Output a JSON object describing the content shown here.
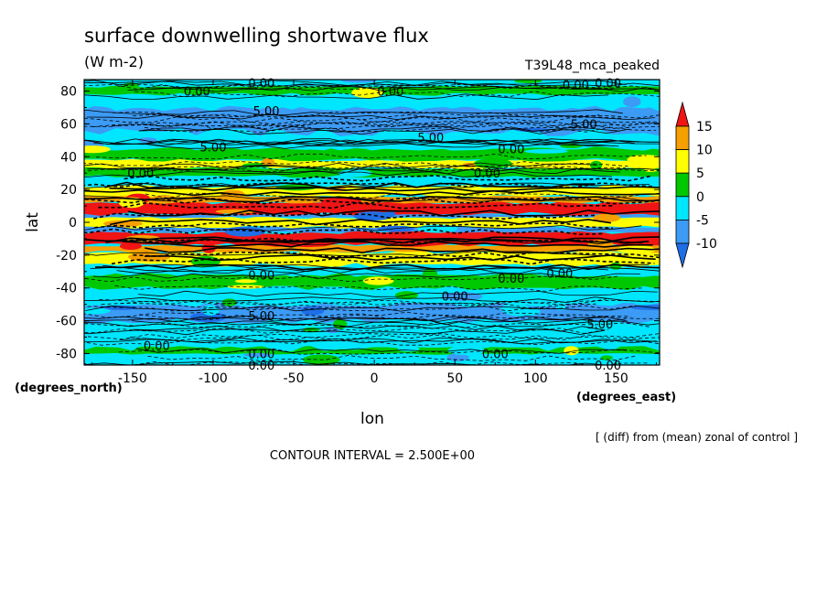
{
  "chart_data": {
    "type": "heatmap",
    "title": "surface downwelling shortwave flux",
    "units": "(W m-2)",
    "experiment": "T39L48_mca_peaked",
    "xlabel": "lon",
    "ylabel": "lat",
    "x_unit_label": "(degrees_east)",
    "y_unit_label": "(degrees_north)",
    "xlim": [
      -180,
      177
    ],
    "ylim": [
      -87,
      87
    ],
    "xticks": [
      -150,
      -100,
      -50,
      0,
      50,
      100,
      150
    ],
    "yticks": [
      -80,
      -60,
      -40,
      -20,
      0,
      20,
      40,
      60,
      80
    ],
    "xtick_labels": [
      "-150",
      "-100",
      "-50",
      "0",
      "50",
      "100",
      "150"
    ],
    "ytick_labels": [
      "-80",
      "-60",
      "-40",
      "-20",
      "0",
      "20",
      "40",
      "60",
      "80"
    ],
    "note": "[ (diff) from (mean) zonal of control ]",
    "contour_interval": "CONTOUR INTERVAL = 2.500E+00",
    "colorbar": {
      "levels": [
        -10,
        -5,
        0,
        5,
        10,
        15
      ],
      "labels": [
        "15",
        "10",
        "5",
        "0",
        "-5",
        "-10"
      ],
      "colors": [
        "#1e6ee6",
        "#3c9bf5",
        "#00e6ff",
        "#00c800",
        "#ffff00",
        "#f5a000",
        "#f01414"
      ]
    },
    "zonal_bands": [
      {
        "lat": [
          -87,
          -80
        ],
        "value": -5
      },
      {
        "lat": [
          -80,
          -76
        ],
        "value": 2
      },
      {
        "lat": [
          -76,
          -60
        ],
        "value": -3
      },
      {
        "lat": [
          -60,
          -50
        ],
        "value": -6
      },
      {
        "lat": [
          -50,
          -40
        ],
        "value": -3
      },
      {
        "lat": [
          -40,
          -32
        ],
        "value": 1
      },
      {
        "lat": [
          -32,
          -26
        ],
        "value": -4
      },
      {
        "lat": [
          -26,
          -18
        ],
        "value": 8
      },
      {
        "lat": [
          -18,
          -14
        ],
        "value": 12
      },
      {
        "lat": [
          -14,
          -6
        ],
        "value": 16
      },
      {
        "lat": [
          -6,
          -3
        ],
        "value": -6
      },
      {
        "lat": [
          -3,
          3
        ],
        "value": 7
      },
      {
        "lat": [
          3,
          5
        ],
        "value": -6
      },
      {
        "lat": [
          5,
          12
        ],
        "value": 16
      },
      {
        "lat": [
          12,
          16
        ],
        "value": 12
      },
      {
        "lat": [
          16,
          22
        ],
        "value": 8
      },
      {
        "lat": [
          22,
          28
        ],
        "value": -4
      },
      {
        "lat": [
          28,
          33
        ],
        "value": 2
      },
      {
        "lat": [
          33,
          38
        ],
        "value": 7
      },
      {
        "lat": [
          38,
          45
        ],
        "value": 1
      },
      {
        "lat": [
          45,
          55
        ],
        "value": -3
      },
      {
        "lat": [
          55,
          70
        ],
        "value": -6
      },
      {
        "lat": [
          70,
          78
        ],
        "value": -3
      },
      {
        "lat": [
          78,
          83
        ],
        "value": 2
      },
      {
        "lat": [
          83,
          87
        ],
        "value": -5
      }
    ],
    "contour_labels": [
      {
        "text": "0.00",
        "lon": -70,
        "lat": 85
      },
      {
        "text": "0.00",
        "lon": -110,
        "lat": 80
      },
      {
        "text": "0.00",
        "lon": 10,
        "lat": 80
      },
      {
        "text": "0.00",
        "lon": 125,
        "lat": 84
      },
      {
        "text": "0.00",
        "lon": 145,
        "lat": 85
      },
      {
        "text": "5.00",
        "lon": -67,
        "lat": 68
      },
      {
        "text": "5.00",
        "lon": 130,
        "lat": 60
      },
      {
        "text": "5.00",
        "lon": 35,
        "lat": 52
      },
      {
        "text": "5.00",
        "lon": -100,
        "lat": 46
      },
      {
        "text": "0.00",
        "lon": 85,
        "lat": 45
      },
      {
        "text": "0.00",
        "lon": 70,
        "lat": 30
      },
      {
        "text": "0.00",
        "lon": -145,
        "lat": 30
      },
      {
        "text": "0.00",
        "lon": -70,
        "lat": -32
      },
      {
        "text": "0.00",
        "lon": 85,
        "lat": -34
      },
      {
        "text": "0.00",
        "lon": 115,
        "lat": -31
      },
      {
        "text": "0.00",
        "lon": 50,
        "lat": -45
      },
      {
        "text": "5.00",
        "lon": -70,
        "lat": -57
      },
      {
        "text": "5.00",
        "lon": 140,
        "lat": -62
      },
      {
        "text": "0.00",
        "lon": -135,
        "lat": -75
      },
      {
        "text": "0.00",
        "lon": -70,
        "lat": -80
      },
      {
        "text": "0.00",
        "lon": -70,
        "lat": -87
      },
      {
        "text": "0.00",
        "lon": 75,
        "lat": -80
      },
      {
        "text": "0.00",
        "lon": 145,
        "lat": -87
      }
    ]
  }
}
